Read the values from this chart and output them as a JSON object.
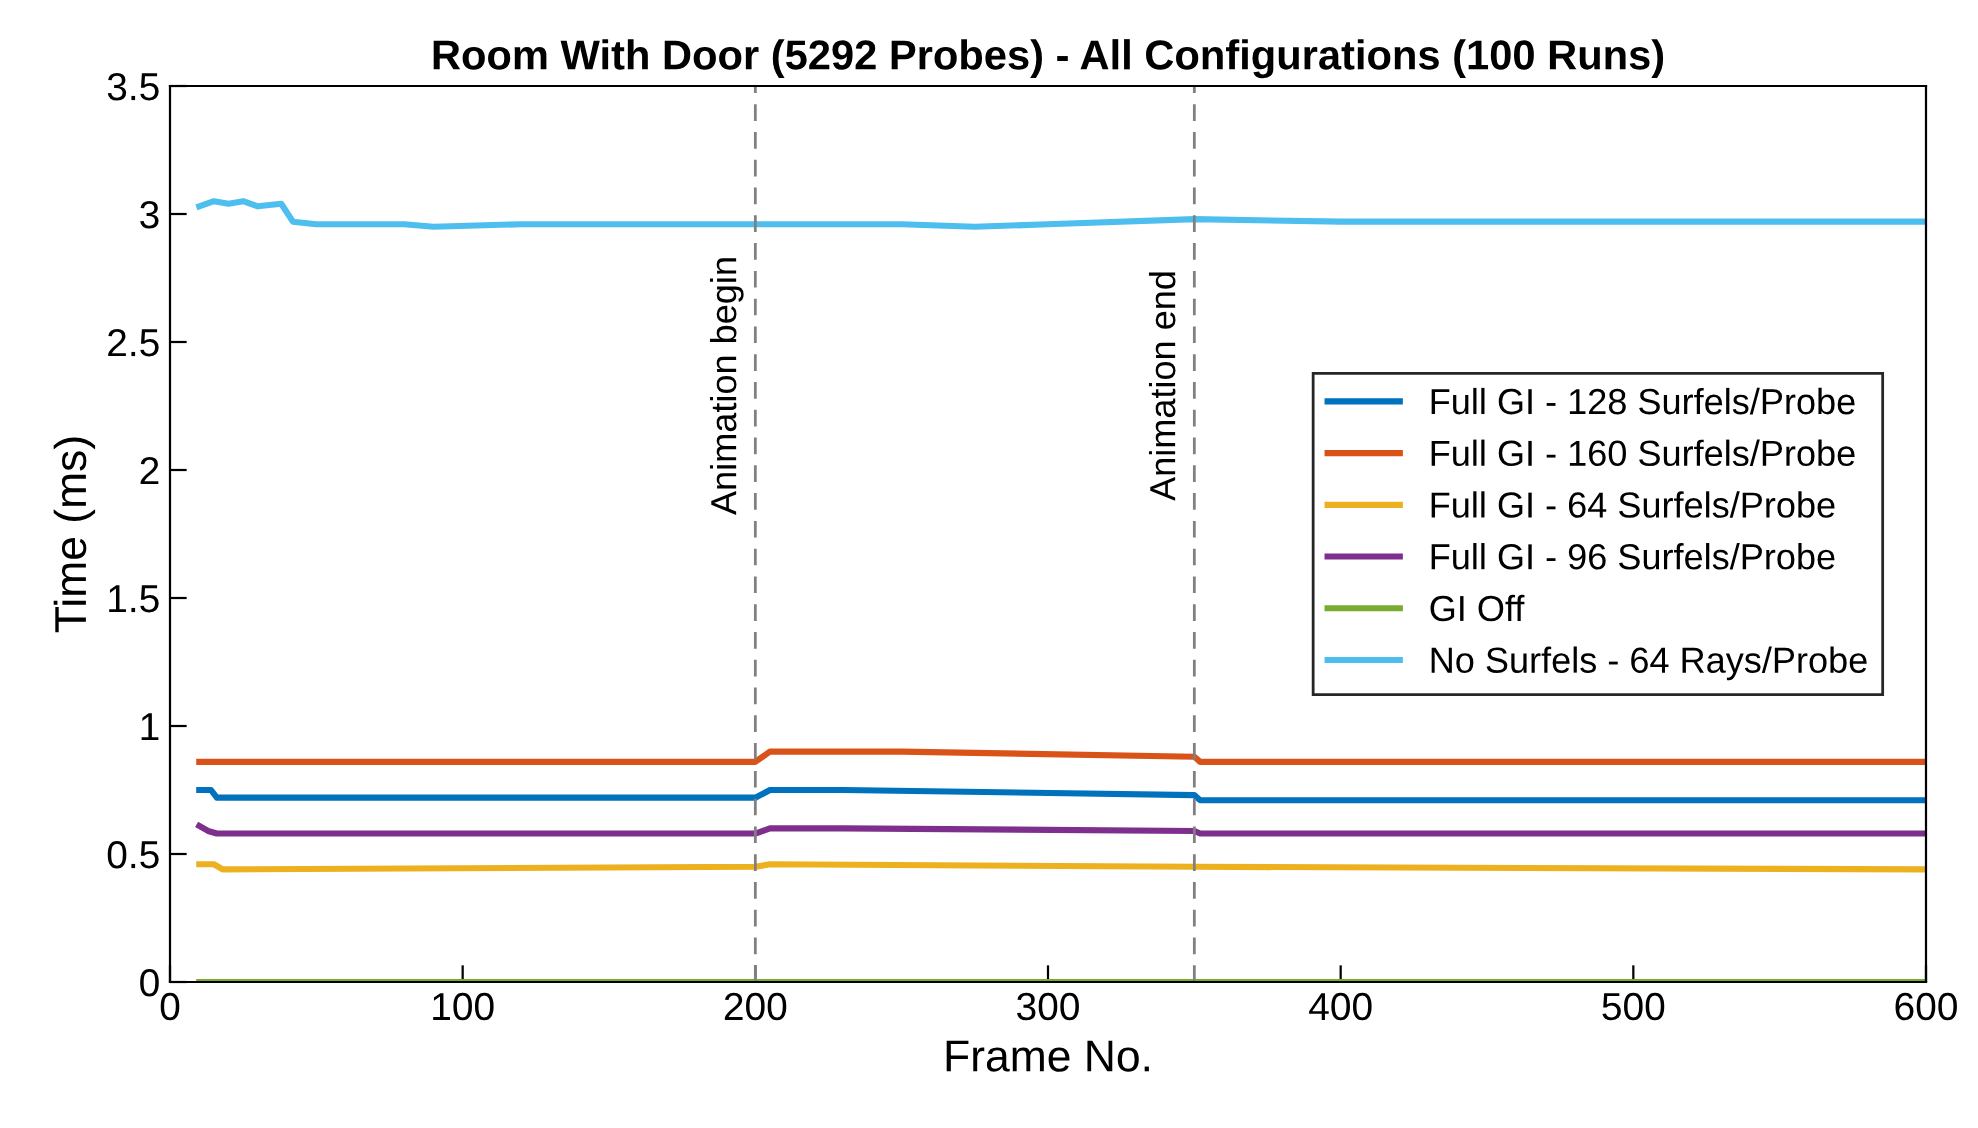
{
  "chart_data": {
    "type": "line",
    "title": "Room With Door (5292 Probes) - All Configurations (100 Runs)",
    "xlabel": "Frame No.",
    "ylabel": "Time (ms)",
    "xlim": [
      0,
      600
    ],
    "xticks": [
      0,
      100,
      200,
      300,
      400,
      500,
      600
    ],
    "ylim": [
      0,
      3.5
    ],
    "yticks": [
      0,
      0.5,
      1,
      1.5,
      2,
      2.5,
      3,
      3.5
    ],
    "series": [
      {
        "name": "Full GI - 128 Surfels/Probe",
        "color": "#0072bd",
        "x": [
          10,
          14,
          16,
          200,
          205,
          230,
          350,
          352,
          600
        ],
        "values": [
          0.75,
          0.75,
          0.72,
          0.72,
          0.75,
          0.75,
          0.73,
          0.71,
          0.71
        ]
      },
      {
        "name": "Full GI - 160 Surfels/Probe",
        "color": "#d95319",
        "x": [
          10,
          200,
          205,
          250,
          350,
          352,
          600
        ],
        "values": [
          0.86,
          0.86,
          0.9,
          0.9,
          0.88,
          0.86,
          0.86
        ]
      },
      {
        "name": "Full GI - 64 Surfels/Probe",
        "color": "#edb120",
        "x": [
          10,
          15,
          18,
          200,
          205,
          350,
          600
        ],
        "values": [
          0.46,
          0.46,
          0.44,
          0.45,
          0.46,
          0.45,
          0.44
        ]
      },
      {
        "name": "Full GI - 96 Surfels/Probe",
        "color": "#7e2f8e",
        "x": [
          10,
          13,
          16,
          200,
          205,
          230,
          350,
          352,
          600
        ],
        "values": [
          0.61,
          0.59,
          0.58,
          0.58,
          0.6,
          0.6,
          0.59,
          0.58,
          0.58
        ]
      },
      {
        "name": "GI Off",
        "color": "#77ac30",
        "x": [
          10,
          600
        ],
        "values": [
          0,
          0
        ]
      },
      {
        "name": "No Surfels - 64 Rays/Probe",
        "color": "#4dbeee",
        "x": [
          10,
          15,
          20,
          25,
          30,
          38,
          42,
          50,
          80,
          90,
          120,
          150,
          200,
          250,
          275,
          300,
          350,
          400,
          500,
          600
        ],
        "values": [
          3.03,
          3.05,
          3.04,
          3.05,
          3.03,
          3.04,
          2.97,
          2.96,
          2.96,
          2.95,
          2.96,
          2.96,
          2.96,
          2.96,
          2.95,
          2.96,
          2.98,
          2.97,
          2.97,
          2.97
        ]
      }
    ],
    "ref_lines": [
      {
        "axis": "x",
        "value": 200,
        "label": "Animation begin",
        "color": "#808080",
        "line_style": "dashed"
      },
      {
        "axis": "x",
        "value": 350,
        "label": "Animation end",
        "color": "#808080",
        "line_style": "dashed"
      }
    ],
    "legend": "right",
    "grid": false
  }
}
